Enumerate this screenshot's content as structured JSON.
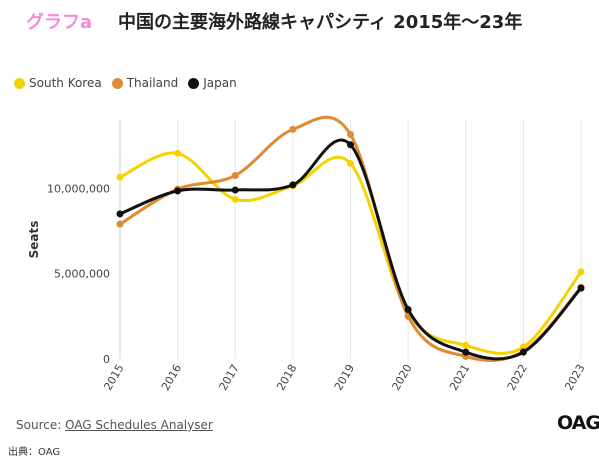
{
  "header": {
    "tag": "グラフa",
    "title": "中国の主要海外路線キャパシティ 2015年～23年"
  },
  "legend": [
    {
      "label": "South Korea",
      "color": "#f5d200"
    },
    {
      "label": "Thailand",
      "color": "#e08a34"
    },
    {
      "label": "Japan",
      "color": "#111111"
    }
  ],
  "chart_data": {
    "type": "line",
    "x": [
      "2015",
      "2016",
      "2017",
      "2018",
      "2019",
      "2020",
      "2021",
      "2022",
      "2023"
    ],
    "ylabel": "Seats",
    "ylim": [
      0,
      14000000
    ],
    "yticks": [
      0,
      5000000,
      10000000
    ],
    "ytick_labels": [
      "0",
      "5,000,000",
      "10,000,000"
    ],
    "grid": "vertical",
    "legend_position": "top-left",
    "series": [
      {
        "name": "South Korea",
        "color": "#f5d200",
        "values": [
          10650000,
          12050000,
          9350000,
          10150000,
          11450000,
          2700000,
          800000,
          700000,
          5100000
        ]
      },
      {
        "name": "Thailand",
        "color": "#e08a34",
        "values": [
          7900000,
          9950000,
          10750000,
          13450000,
          13150000,
          2500000,
          150000,
          450000,
          4200000
        ]
      },
      {
        "name": "Japan",
        "color": "#111111",
        "values": [
          8500000,
          9850000,
          9900000,
          10200000,
          12550000,
          2900000,
          400000,
          400000,
          4150000
        ]
      }
    ]
  },
  "footer": {
    "source_prefix": "Source: ",
    "source_link": "OAG Schedules Analyser",
    "credit": "出典：OAG",
    "logo": "OAG"
  }
}
